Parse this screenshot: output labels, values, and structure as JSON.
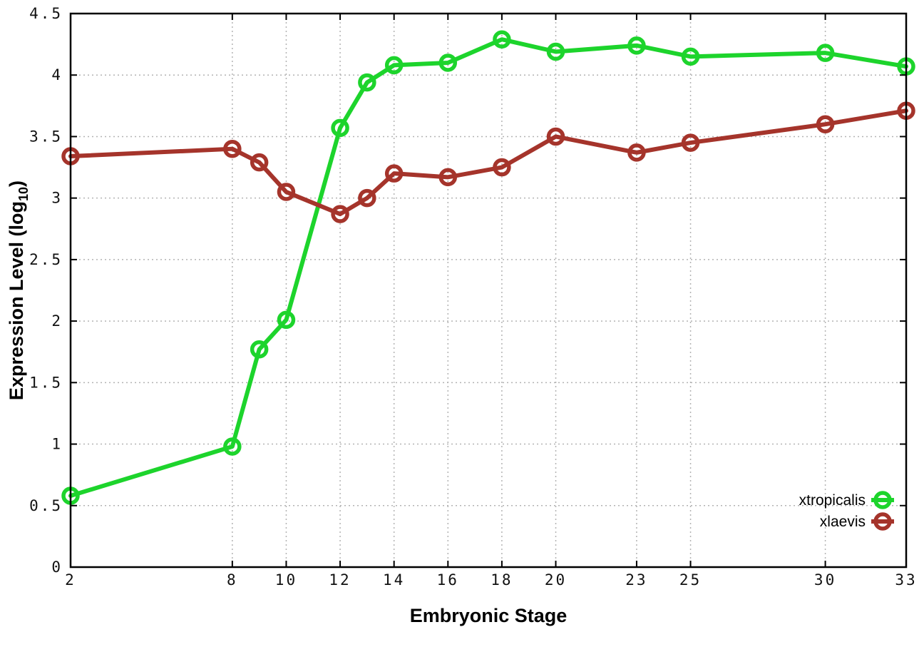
{
  "figure": {
    "background": "#ffffff",
    "border_color": "#000000",
    "grid_color": "#b3b3b3",
    "text_color": "#111111"
  },
  "chart_data": {
    "type": "line",
    "title": "",
    "xlabel": "Embryonic Stage",
    "ylabel": {
      "text": "Expression Level (log10)",
      "prefix": "Expression Level (log",
      "sub": "10",
      "suffix": ")"
    },
    "x": [
      2,
      8,
      9,
      10,
      12,
      13,
      14,
      16,
      18,
      20,
      23,
      25,
      30,
      33
    ],
    "x_ticks": [
      2,
      8,
      10,
      12,
      14,
      16,
      18,
      20,
      23,
      25,
      30,
      33
    ],
    "y_ticks": [
      0,
      0.5,
      1,
      1.5,
      2,
      2.5,
      3,
      3.5,
      4,
      4.5
    ],
    "xlim": [
      2,
      33
    ],
    "ylim": [
      0,
      4.5
    ],
    "grid": true,
    "grid_style": "dotted",
    "legend_position": "bottom-right",
    "marker": "open-circle",
    "series": [
      {
        "name": "xtropicalis",
        "color": "#1dd42c",
        "values": [
          0.58,
          0.98,
          1.77,
          2.01,
          3.57,
          3.94,
          4.08,
          4.1,
          4.29,
          4.19,
          4.24,
          4.15,
          4.18,
          4.07
        ]
      },
      {
        "name": "xlaevis",
        "color": "#a5342b",
        "values": [
          3.34,
          3.4,
          3.29,
          3.05,
          2.87,
          3.0,
          3.2,
          3.17,
          3.25,
          3.5,
          3.37,
          3.45,
          3.6,
          3.71
        ]
      }
    ]
  }
}
